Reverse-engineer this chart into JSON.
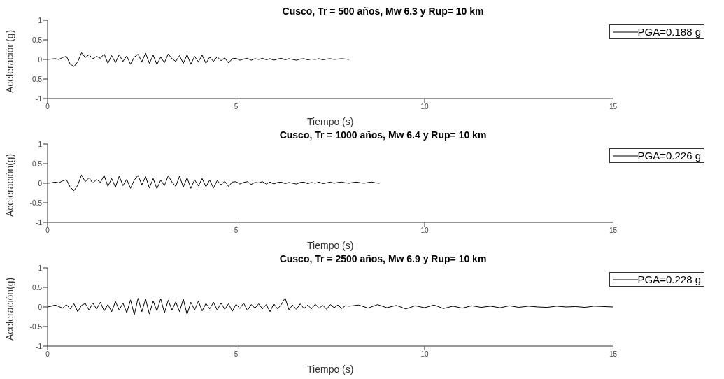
{
  "chart_data": [
    {
      "type": "line",
      "title": "Cusco, Tr = 500 años, Mw 6.3 y Rup= 10 km",
      "xlabel": "Tiempo (s)",
      "ylabel": "Aceleración(g)",
      "xlim": [
        0,
        15
      ],
      "xticks": [
        0,
        5,
        10,
        15
      ],
      "ylim": [
        -1,
        1
      ],
      "yticks": [
        -1,
        -0.5,
        0,
        0.5,
        1
      ],
      "legend": "top right",
      "marker": "none",
      "line_style": "solid",
      "x": [
        0,
        0.1,
        0.2,
        0.3,
        0.4,
        0.5,
        0.6,
        0.7,
        0.8,
        0.9,
        1.0,
        1.1,
        1.2,
        1.3,
        1.4,
        1.5,
        1.6,
        1.7,
        1.8,
        1.9,
        2.0,
        2.1,
        2.2,
        2.3,
        2.4,
        2.5,
        2.6,
        2.7,
        2.8,
        2.9,
        3.0,
        3.1,
        3.2,
        3.3,
        3.4,
        3.5,
        3.6,
        3.7,
        3.8,
        3.9,
        4.0,
        4.1,
        4.2,
        4.3,
        4.4,
        4.5,
        4.6,
        4.7,
        4.8,
        4.9,
        5.0,
        5.1,
        5.2,
        5.3,
        5.4,
        5.5,
        5.6,
        5.7,
        5.8,
        5.9,
        6.0,
        6.1,
        6.2,
        6.3,
        6.4,
        6.5,
        6.6,
        6.7,
        6.8,
        6.9,
        7.0,
        7.1,
        7.2,
        7.3,
        7.4,
        7.5,
        7.6,
        7.7,
        7.8,
        7.9,
        8.0
      ],
      "series": [
        {
          "name": "PGA=0.188 g",
          "color": "#000000",
          "values": [
            0.0,
            0.01,
            0.02,
            0.0,
            0.05,
            0.08,
            -0.12,
            -0.18,
            -0.06,
            0.17,
            0.05,
            0.12,
            0.02,
            0.08,
            0.03,
            0.14,
            -0.1,
            0.1,
            -0.08,
            0.12,
            -0.05,
            0.09,
            -0.12,
            0.06,
            0.13,
            -0.06,
            0.16,
            -0.1,
            0.11,
            -0.13,
            0.06,
            -0.08,
            0.14,
            0.02,
            -0.05,
            0.1,
            -0.1,
            0.12,
            -0.12,
            0.08,
            -0.06,
            0.11,
            -0.1,
            0.06,
            -0.05,
            0.07,
            -0.03,
            0.04,
            -0.09,
            0.02,
            0.03,
            -0.02,
            0.01,
            0.03,
            -0.02,
            0.02,
            0.0,
            0.03,
            -0.01,
            0.02,
            -0.02,
            0.01,
            0.03,
            -0.01,
            0.02,
            0.0,
            -0.02,
            0.01,
            0.02,
            -0.01,
            0.01,
            0.0,
            0.02,
            -0.01,
            0.01,
            0.02,
            0.0,
            0.01,
            0.02,
            0.01,
            0.0
          ]
        }
      ]
    },
    {
      "type": "line",
      "title": "Cusco, Tr = 1000 años, Mw 6.4 y Rup= 10 km",
      "xlabel": "Tiempo (s)",
      "ylabel": "Aceleración(g)",
      "xlim": [
        0,
        15
      ],
      "xticks": [
        0,
        5,
        10,
        15
      ],
      "ylim": [
        -1,
        1
      ],
      "yticks": [
        -1,
        -0.5,
        0,
        0.5,
        1
      ],
      "legend": "top right",
      "marker": "none",
      "line_style": "solid",
      "x": [
        0,
        0.1,
        0.2,
        0.3,
        0.4,
        0.5,
        0.6,
        0.7,
        0.8,
        0.9,
        1.0,
        1.1,
        1.2,
        1.3,
        1.4,
        1.5,
        1.6,
        1.7,
        1.8,
        1.9,
        2.0,
        2.1,
        2.2,
        2.3,
        2.4,
        2.5,
        2.6,
        2.7,
        2.8,
        2.9,
        3.0,
        3.1,
        3.2,
        3.3,
        3.4,
        3.5,
        3.6,
        3.7,
        3.8,
        3.9,
        4.0,
        4.1,
        4.2,
        4.3,
        4.4,
        4.5,
        4.6,
        4.7,
        4.8,
        4.9,
        5.0,
        5.1,
        5.2,
        5.3,
        5.4,
        5.5,
        5.6,
        5.7,
        5.8,
        5.9,
        6.0,
        6.1,
        6.2,
        6.3,
        6.4,
        6.5,
        6.6,
        6.7,
        6.8,
        6.9,
        7.0,
        7.1,
        7.2,
        7.3,
        7.4,
        7.5,
        7.6,
        7.7,
        7.8,
        7.9,
        8.0,
        8.1,
        8.2,
        8.3,
        8.4,
        8.5,
        8.6,
        8.7,
        8.8
      ],
      "series": [
        {
          "name": "PGA=0.226 g",
          "color": "#000000",
          "values": [
            0.0,
            0.01,
            0.03,
            0.01,
            0.06,
            0.09,
            -0.1,
            -0.19,
            -0.05,
            0.21,
            0.04,
            0.14,
            0.0,
            0.1,
            0.02,
            0.2,
            -0.08,
            0.12,
            -0.1,
            0.18,
            -0.06,
            0.1,
            -0.13,
            0.08,
            0.2,
            -0.04,
            0.17,
            -0.12,
            0.12,
            -0.14,
            0.08,
            -0.06,
            0.19,
            0.03,
            -0.08,
            0.18,
            -0.1,
            0.14,
            -0.13,
            0.09,
            -0.07,
            0.12,
            -0.09,
            0.08,
            -0.12,
            0.07,
            -0.04,
            0.05,
            -0.08,
            0.03,
            0.04,
            -0.02,
            0.02,
            0.04,
            -0.03,
            0.02,
            0.01,
            0.04,
            -0.02,
            0.03,
            -0.02,
            0.02,
            0.03,
            -0.01,
            0.02,
            0.0,
            -0.02,
            0.02,
            0.03,
            -0.01,
            0.02,
            0.0,
            0.03,
            -0.01,
            0.01,
            0.03,
            0.0,
            0.02,
            0.03,
            0.01,
            0.0,
            0.02,
            0.03,
            0.01,
            0.0,
            0.02,
            0.03,
            0.01,
            0.0
          ]
        }
      ]
    },
    {
      "type": "line",
      "title": "Cusco, Tr = 2500 años, Mw 6.9 y Rup= 10 km",
      "xlabel": "Tiempo (s)",
      "ylabel": "Aceleración(g)",
      "xlim": [
        0,
        15
      ],
      "xticks": [
        0,
        5,
        10,
        15
      ],
      "ylim": [
        -1,
        1
      ],
      "yticks": [
        -1,
        -0.5,
        0,
        0.5,
        1
      ],
      "legend": "top right",
      "marker": "none",
      "line_style": "solid",
      "x": [
        0,
        0.1,
        0.2,
        0.3,
        0.4,
        0.5,
        0.6,
        0.7,
        0.8,
        0.9,
        1.0,
        1.1,
        1.2,
        1.3,
        1.4,
        1.5,
        1.6,
        1.7,
        1.8,
        1.9,
        2.0,
        2.1,
        2.2,
        2.3,
        2.4,
        2.5,
        2.6,
        2.7,
        2.8,
        2.9,
        3.0,
        3.1,
        3.2,
        3.3,
        3.4,
        3.5,
        3.6,
        3.7,
        3.8,
        3.9,
        4.0,
        4.1,
        4.2,
        4.3,
        4.4,
        4.5,
        4.6,
        4.7,
        4.8,
        4.9,
        5.0,
        5.1,
        5.2,
        5.3,
        5.4,
        5.5,
        5.6,
        5.7,
        5.8,
        5.9,
        6.0,
        6.1,
        6.2,
        6.3,
        6.4,
        6.5,
        6.6,
        6.7,
        6.8,
        6.9,
        7.0,
        7.1,
        7.2,
        7.3,
        7.4,
        7.5,
        7.6,
        7.7,
        7.8,
        7.9,
        8.0,
        8.25,
        8.5,
        8.75,
        9.0,
        9.25,
        9.5,
        9.75,
        10.0,
        10.25,
        10.5,
        10.75,
        11.0,
        11.25,
        11.5,
        11.75,
        12.0,
        12.25,
        12.5,
        12.75,
        13.0,
        13.25,
        13.5,
        13.75,
        14.0,
        14.25,
        14.5,
        14.75,
        15.0
      ],
      "series": [
        {
          "name": "PGA=0.228 g",
          "color": "#000000",
          "values": [
            0.0,
            0.02,
            0.05,
            0.01,
            -0.03,
            0.06,
            -0.05,
            0.08,
            -0.12,
            0.04,
            0.09,
            -0.08,
            0.1,
            -0.05,
            0.12,
            -0.1,
            0.06,
            -0.12,
            0.14,
            -0.08,
            0.1,
            -0.15,
            0.18,
            -0.2,
            0.22,
            -0.12,
            0.2,
            -0.18,
            0.15,
            -0.1,
            0.21,
            -0.15,
            0.17,
            -0.08,
            0.13,
            -0.12,
            0.2,
            -0.19,
            0.12,
            -0.08,
            0.15,
            -0.1,
            0.09,
            -0.05,
            0.12,
            -0.08,
            0.1,
            -0.06,
            0.08,
            -0.11,
            0.07,
            -0.04,
            0.1,
            -0.09,
            0.06,
            -0.03,
            0.08,
            -0.05,
            0.06,
            -0.12,
            0.08,
            -0.05,
            0.06,
            0.23,
            -0.07,
            0.05,
            -0.06,
            0.08,
            -0.04,
            0.05,
            -0.05,
            0.07,
            -0.03,
            0.04,
            -0.06,
            0.06,
            -0.02,
            0.05,
            -0.04,
            0.03,
            0.02,
            0.05,
            -0.03,
            0.06,
            -0.02,
            0.04,
            -0.05,
            0.03,
            -0.02,
            0.05,
            -0.04,
            0.02,
            -0.03,
            0.03,
            -0.01,
            0.02,
            -0.02,
            0.03,
            -0.01,
            0.02,
            0.0,
            -0.01,
            0.02,
            0.0,
            0.01,
            -0.01,
            0.02,
            0.01,
            0.0
          ]
        }
      ]
    }
  ]
}
